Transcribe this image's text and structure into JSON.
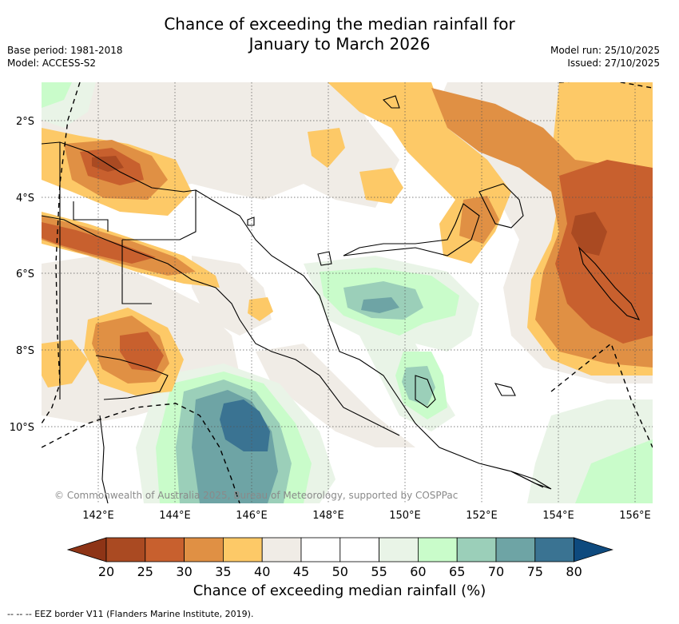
{
  "title": {
    "line1": "Chance of exceeding the median rainfall for",
    "line2": "January to March 2026"
  },
  "meta": {
    "base_period": "Base period: 1981-2018",
    "model": "Model: ACCESS-S2",
    "model_run": "Model run: 25/10/2025",
    "issued": "Issued: 27/10/2025"
  },
  "map": {
    "lat_ticks": [
      "2°S",
      "4°S",
      "6°S",
      "8°S",
      "10°S"
    ],
    "lon_ticks": [
      "142°E",
      "144°E",
      "146°E",
      "148°E",
      "150°E",
      "152°E",
      "154°E",
      "156°E"
    ],
    "copyright": "© Commonwealth of Australia 2025, Bureau of Meteorology, supported by COSPPac"
  },
  "colorbar": {
    "labels": [
      "20",
      "25",
      "30",
      "35",
      "40",
      "45",
      "50",
      "55",
      "60",
      "65",
      "70",
      "75",
      "80"
    ],
    "colors": [
      "#aa4a22",
      "#c8602e",
      "#e09044",
      "#fdc967",
      "#f0ece6",
      "#ffffff",
      "#ffffff",
      "#e9f4e7",
      "#c9fcca",
      "#9bcfb9",
      "#6ea4a5",
      "#3a7392"
    ],
    "low_color": "#8e3416",
    "high_color": "#0e4a7e",
    "title": "Chance of exceeding median rainfall (%)"
  },
  "footnote": "-- -- -- EEZ border V11 (Flanders Marine Institute, 2019)."
}
